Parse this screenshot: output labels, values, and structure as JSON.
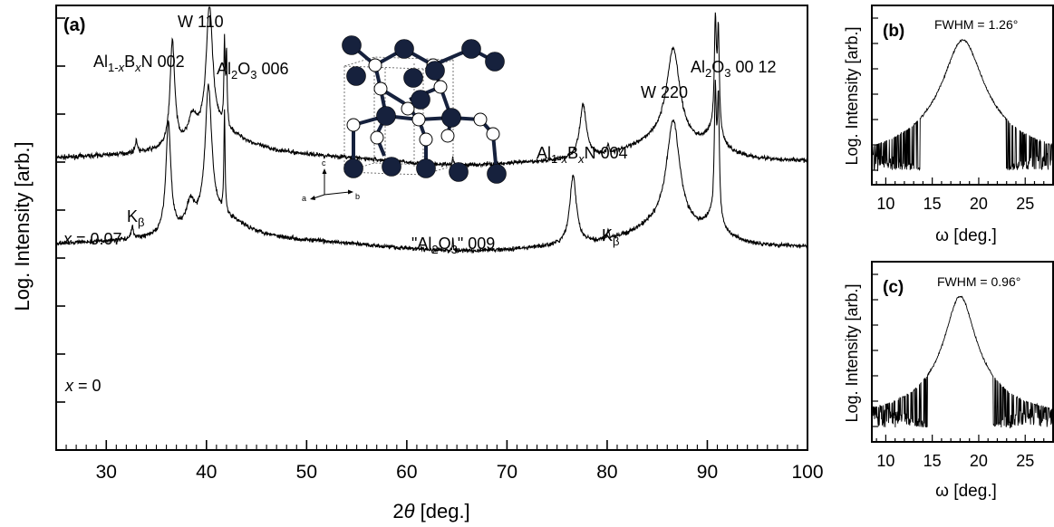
{
  "chart_data": [
    {
      "id": "a",
      "type": "line",
      "panel_label": "(a)",
      "xlabel": "2θ [deg.]",
      "xlabel_sym": "θ",
      "ylabel": "Log. Intensity [arb.]",
      "xlim": [
        25,
        100
      ],
      "xticks": [
        30,
        40,
        50,
        60,
        70,
        80,
        90,
        100
      ],
      "y_scale": "log",
      "series": [
        {
          "name": "x = 0.07",
          "label_var": "x",
          "label_val": "= 0.07",
          "baseline": 0.3,
          "noise": 0.07,
          "peaks": [
            {
              "x": 33.0,
              "h": 0.4,
              "w": 0.12
            },
            {
              "x": 36.6,
              "h": 3.4,
              "w": 0.28
            },
            {
              "x": 38.6,
              "h": 0.75,
              "w": 0.5
            },
            {
              "x": 40.3,
              "h": 4.1,
              "w": 0.4
            },
            {
              "x": 41.8,
              "h": 2.6,
              "w": 0.07
            },
            {
              "x": 42.0,
              "h": 2.3,
              "w": 0.07
            },
            {
              "x": 41.5,
              "h": 0.7,
              "w": 3.2
            },
            {
              "x": 64.6,
              "h": 0.3,
              "w": 0.05
            },
            {
              "x": 77.6,
              "h": 1.7,
              "w": 0.4
            },
            {
              "x": 80.1,
              "h": 0.3,
              "w": 0.1
            },
            {
              "x": 86.6,
              "h": 2.95,
              "w": 0.8
            },
            {
              "x": 85.5,
              "h": 0.7,
              "w": 4.0
            },
            {
              "x": 90.8,
              "h": 3.4,
              "w": 0.12
            },
            {
              "x": 91.1,
              "h": 3.2,
              "w": 0.12
            },
            {
              "x": 90.6,
              "h": 0.6,
              "w": 1.2
            }
          ]
        },
        {
          "name": "x = 0",
          "label_var": "x",
          "label_val": "= 0",
          "baseline": -2.45,
          "noise": 0.07,
          "peaks": [
            {
              "x": 32.6,
              "h": 0.4,
              "w": 0.12
            },
            {
              "x": 36.2,
              "h": 3.55,
              "w": 0.3
            },
            {
              "x": 38.4,
              "h": 0.8,
              "w": 0.5
            },
            {
              "x": 40.2,
              "h": 4.3,
              "w": 0.4
            },
            {
              "x": 41.8,
              "h": 3.2,
              "w": 0.07
            },
            {
              "x": 41.5,
              "h": 0.7,
              "w": 3.2
            },
            {
              "x": 64.6,
              "h": 0.4,
              "w": 0.05
            },
            {
              "x": 76.6,
              "h": 2.2,
              "w": 0.4
            },
            {
              "x": 80.1,
              "h": 0.3,
              "w": 0.1
            },
            {
              "x": 86.6,
              "h": 3.4,
              "w": 0.8
            },
            {
              "x": 85.5,
              "h": 0.7,
              "w": 4.0
            },
            {
              "x": 90.8,
              "h": 3.9,
              "w": 0.12
            },
            {
              "x": 91.1,
              "h": 3.7,
              "w": 0.12
            },
            {
              "x": 90.6,
              "h": 0.6,
              "w": 1.2
            }
          ]
        }
      ],
      "annotations": [
        {
          "id": "kb1",
          "pre": "K",
          "sub": "β",
          "post": ""
        },
        {
          "id": "alb002",
          "pre": "Al",
          "sub": "1-x",
          "mid": "B",
          "sub2": "x",
          "post": "N 002"
        },
        {
          "id": "w110",
          "pre": "W 110"
        },
        {
          "id": "al006",
          "pre": "Al",
          "sub": "2",
          "mid": "O",
          "sub2": "3",
          "post": " 006"
        },
        {
          "id": "al009",
          "pre": "\"Al",
          "sub": "2",
          "mid": "O",
          "sub2": "3",
          "post": "\" 009"
        },
        {
          "id": "alb004",
          "pre": "Al",
          "sub": "1-x",
          "mid": "B",
          "sub2": "x",
          "post": "N 004"
        },
        {
          "id": "kb2",
          "pre": "K",
          "sub": "β",
          "post": ""
        },
        {
          "id": "w220",
          "pre": "W 220"
        },
        {
          "id": "al0012",
          "pre": "Al",
          "sub": "2",
          "mid": "O",
          "sub2": "3",
          "post": " 00 12"
        }
      ],
      "inset": {
        "type": "crystal-structure-diagram",
        "axis_labels": [
          "a",
          "b",
          "c"
        ],
        "colors": {
          "dark": "#16213d",
          "light": "#ffffff"
        }
      }
    },
    {
      "id": "b",
      "type": "line",
      "panel_label": "(b)",
      "annotation": "FWHM = 1.26°",
      "xlabel": "ω [deg.]",
      "ylabel": "Log. Intensity [arb.]",
      "xlim": [
        8.5,
        28
      ],
      "xticks": [
        10,
        15,
        20,
        25
      ],
      "y_scale": "log",
      "peak": {
        "x": 18.3,
        "fwhm": 1.26
      }
    },
    {
      "id": "c",
      "type": "line",
      "panel_label": "(c)",
      "annotation": "FWHM = 0.96°",
      "xlabel": "ω [deg.]",
      "ylabel": "Log. Intensity [arb.]",
      "xlim": [
        8.5,
        28
      ],
      "xticks": [
        10,
        15,
        20,
        25
      ],
      "y_scale": "log",
      "peak": {
        "x": 18.0,
        "fwhm": 0.96
      }
    }
  ]
}
